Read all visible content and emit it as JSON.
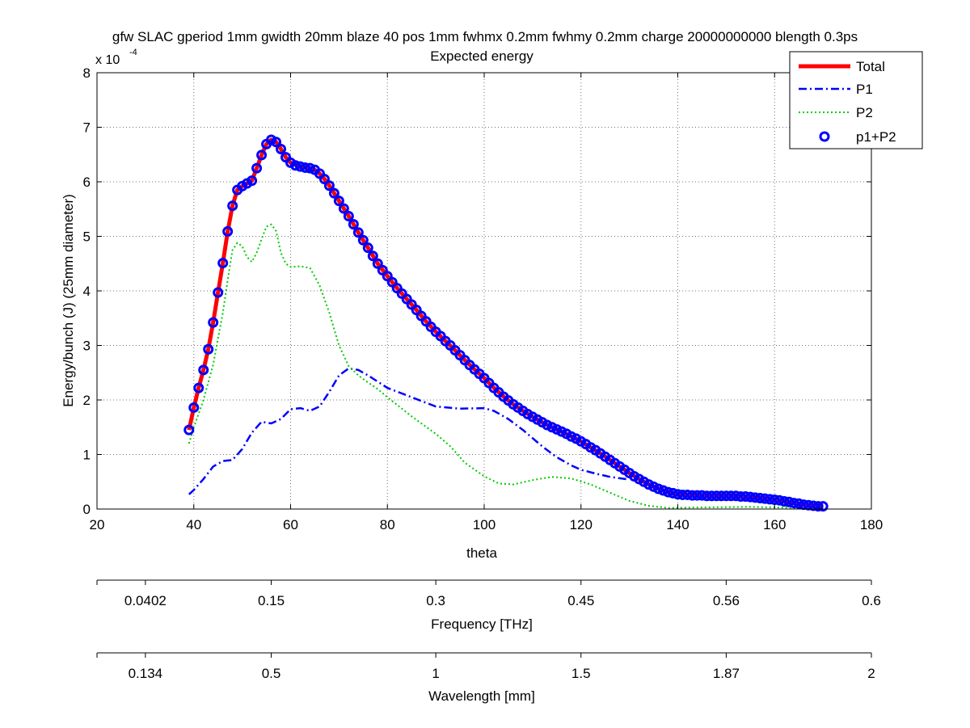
{
  "chart_data": {
    "type": "line",
    "title": "gfw SLAC gperiod 1mm gwidth 20mm blaze 40 pos 1mm fwhmx 0.2mm fwhmy 0.2mm charge 20000000000 blength 0.3ps",
    "subtitle": "Expected energy",
    "xlabel": "theta",
    "ylabel": "Energy/bunch (J) (25mm diameter)",
    "y_exponent_label": "x 10",
    "y_exponent": "-4",
    "xlim": [
      20,
      180
    ],
    "ylim": [
      0,
      8
    ],
    "y_multiplier": 0.0001,
    "grid": true,
    "legend_position": "top-right",
    "x_ticks": [
      "20",
      "40",
      "60",
      "80",
      "100",
      "120",
      "140",
      "160",
      "180"
    ],
    "y_ticks": [
      "0",
      "1",
      "2",
      "3",
      "4",
      "5",
      "6",
      "7",
      "8"
    ],
    "secondary_axes": [
      {
        "label": "Frequency [THz]",
        "ticks": [
          {
            "theta": 20,
            "label": ""
          },
          {
            "theta": 30,
            "label": "0.0402"
          },
          {
            "theta": 56,
            "label": "0.15"
          },
          {
            "theta": 90,
            "label": "0.3"
          },
          {
            "theta": 120,
            "label": "0.45"
          },
          {
            "theta": 150,
            "label": "0.56"
          },
          {
            "theta": 180,
            "label": "0.6"
          }
        ]
      },
      {
        "label": "Wavelength [mm]",
        "ticks": [
          {
            "theta": 20,
            "label": ""
          },
          {
            "theta": 30,
            "label": "0.134"
          },
          {
            "theta": 56,
            "label": "0.5"
          },
          {
            "theta": 90,
            "label": "1"
          },
          {
            "theta": 120,
            "label": "1.5"
          },
          {
            "theta": 150,
            "label": "1.87"
          },
          {
            "theta": 180,
            "label": "2"
          }
        ]
      }
    ],
    "series": [
      {
        "name": "Total",
        "style": "solid",
        "color": "#ff0000",
        "width": 5,
        "points": [
          [
            39,
            1.45
          ],
          [
            40,
            1.86
          ],
          [
            41,
            2.22
          ],
          [
            42,
            2.55
          ],
          [
            43,
            2.93
          ],
          [
            44,
            3.42
          ],
          [
            45,
            3.97
          ],
          [
            46,
            4.51
          ],
          [
            47,
            5.09
          ],
          [
            48,
            5.56
          ],
          [
            49,
            5.85
          ],
          [
            50,
            5.92
          ],
          [
            51,
            5.97
          ],
          [
            52,
            6.02
          ],
          [
            53,
            6.25
          ],
          [
            54,
            6.49
          ],
          [
            55,
            6.69
          ],
          [
            56,
            6.77
          ],
          [
            57,
            6.73
          ],
          [
            58,
            6.6
          ],
          [
            59,
            6.45
          ],
          [
            60,
            6.35
          ],
          [
            62,
            6.28
          ],
          [
            64,
            6.25
          ],
          [
            65,
            6.22
          ],
          [
            66,
            6.15
          ],
          [
            67,
            6.05
          ],
          [
            68,
            5.93
          ],
          [
            70,
            5.65
          ],
          [
            72,
            5.37
          ],
          [
            74,
            5.07
          ],
          [
            76,
            4.79
          ],
          [
            78,
            4.5
          ],
          [
            80,
            4.27
          ],
          [
            82,
            4.05
          ],
          [
            84,
            3.85
          ],
          [
            86,
            3.65
          ],
          [
            88,
            3.44
          ],
          [
            90,
            3.25
          ],
          [
            92,
            3.08
          ],
          [
            94,
            2.91
          ],
          [
            96,
            2.73
          ],
          [
            98,
            2.56
          ],
          [
            100,
            2.4
          ],
          [
            102,
            2.22
          ],
          [
            104,
            2.06
          ],
          [
            106,
            1.92
          ],
          [
            108,
            1.8
          ],
          [
            110,
            1.69
          ],
          [
            112,
            1.59
          ],
          [
            114,
            1.5
          ],
          [
            116,
            1.42
          ],
          [
            118,
            1.33
          ],
          [
            120,
            1.24
          ],
          [
            122,
            1.13
          ],
          [
            124,
            1.02
          ],
          [
            126,
            0.9
          ],
          [
            128,
            0.78
          ],
          [
            130,
            0.66
          ],
          [
            132,
            0.55
          ],
          [
            134,
            0.45
          ],
          [
            136,
            0.37
          ],
          [
            138,
            0.31
          ],
          [
            140,
            0.27
          ],
          [
            142,
            0.26
          ],
          [
            144,
            0.25
          ],
          [
            146,
            0.24
          ],
          [
            148,
            0.24
          ],
          [
            150,
            0.24
          ],
          [
            152,
            0.24
          ],
          [
            154,
            0.23
          ],
          [
            156,
            0.21
          ],
          [
            158,
            0.19
          ],
          [
            160,
            0.17
          ],
          [
            162,
            0.14
          ],
          [
            164,
            0.11
          ],
          [
            166,
            0.08
          ],
          [
            168,
            0.06
          ],
          [
            170,
            0.05
          ]
        ]
      },
      {
        "name": "P1",
        "style": "dashdot",
        "color": "#0000ff",
        "width": 2.5,
        "points": [
          [
            39,
            0.27
          ],
          [
            40,
            0.35
          ],
          [
            42,
            0.55
          ],
          [
            44,
            0.78
          ],
          [
            46,
            0.88
          ],
          [
            48,
            0.9
          ],
          [
            50,
            1.1
          ],
          [
            52,
            1.4
          ],
          [
            54,
            1.6
          ],
          [
            56,
            1.57
          ],
          [
            58,
            1.65
          ],
          [
            60,
            1.83
          ],
          [
            62,
            1.85
          ],
          [
            64,
            1.8
          ],
          [
            66,
            1.88
          ],
          [
            68,
            2.15
          ],
          [
            70,
            2.45
          ],
          [
            72,
            2.58
          ],
          [
            74,
            2.55
          ],
          [
            76,
            2.45
          ],
          [
            80,
            2.22
          ],
          [
            85,
            2.05
          ],
          [
            90,
            1.88
          ],
          [
            95,
            1.84
          ],
          [
            100,
            1.85
          ],
          [
            102,
            1.8
          ],
          [
            105,
            1.65
          ],
          [
            108,
            1.45
          ],
          [
            110,
            1.3
          ],
          [
            112,
            1.15
          ],
          [
            115,
            0.95
          ],
          [
            118,
            0.8
          ],
          [
            120,
            0.72
          ],
          [
            123,
            0.65
          ],
          [
            126,
            0.59
          ],
          [
            130,
            0.54
          ]
        ]
      },
      {
        "name": "P2",
        "style": "dotted",
        "color": "#00cc00",
        "width": 2,
        "points": [
          [
            39,
            1.2
          ],
          [
            40,
            1.5
          ],
          [
            42,
            2.0
          ],
          [
            44,
            2.65
          ],
          [
            46,
            3.6
          ],
          [
            47,
            4.2
          ],
          [
            48,
            4.75
          ],
          [
            49,
            4.88
          ],
          [
            50,
            4.82
          ],
          [
            51,
            4.62
          ],
          [
            52,
            4.53
          ],
          [
            53,
            4.7
          ],
          [
            54,
            4.95
          ],
          [
            55,
            5.18
          ],
          [
            56,
            5.22
          ],
          [
            57,
            5.1
          ],
          [
            58,
            4.7
          ],
          [
            59,
            4.5
          ],
          [
            60,
            4.44
          ],
          [
            62,
            4.45
          ],
          [
            64,
            4.42
          ],
          [
            66,
            4.1
          ],
          [
            68,
            3.6
          ],
          [
            70,
            3.0
          ],
          [
            72,
            2.62
          ],
          [
            74,
            2.45
          ],
          [
            76,
            2.32
          ],
          [
            78,
            2.2
          ],
          [
            80,
            2.05
          ],
          [
            85,
            1.7
          ],
          [
            90,
            1.38
          ],
          [
            93,
            1.15
          ],
          [
            96,
            0.85
          ],
          [
            100,
            0.6
          ],
          [
            103,
            0.47
          ],
          [
            106,
            0.45
          ],
          [
            110,
            0.53
          ],
          [
            114,
            0.59
          ],
          [
            118,
            0.56
          ],
          [
            122,
            0.45
          ],
          [
            126,
            0.3
          ],
          [
            130,
            0.15
          ],
          [
            134,
            0.06
          ],
          [
            138,
            0.02
          ],
          [
            145,
            0.03
          ],
          [
            155,
            0.04
          ],
          [
            165,
            0.02
          ],
          [
            170,
            0.01
          ]
        ]
      },
      {
        "name": "p1+P2",
        "style": "markers",
        "color": "#0000ff",
        "width": 3,
        "points": [
          [
            39,
            1.45
          ],
          [
            40,
            1.86
          ],
          [
            41,
            2.22
          ],
          [
            42,
            2.55
          ],
          [
            43,
            2.93
          ],
          [
            44,
            3.42
          ],
          [
            45,
            3.97
          ],
          [
            46,
            4.51
          ],
          [
            47,
            5.09
          ],
          [
            48,
            5.56
          ],
          [
            49,
            5.85
          ],
          [
            50,
            5.92
          ],
          [
            51,
            5.97
          ],
          [
            52,
            6.02
          ],
          [
            53,
            6.25
          ],
          [
            54,
            6.49
          ],
          [
            55,
            6.69
          ],
          [
            56,
            6.77
          ],
          [
            57,
            6.73
          ],
          [
            58,
            6.6
          ],
          [
            59,
            6.45
          ],
          [
            60,
            6.35
          ],
          [
            61,
            6.3
          ],
          [
            62,
            6.28
          ],
          [
            63,
            6.26
          ],
          [
            64,
            6.25
          ],
          [
            65,
            6.22
          ],
          [
            66,
            6.15
          ],
          [
            67,
            6.05
          ],
          [
            68,
            5.93
          ],
          [
            69,
            5.79
          ],
          [
            70,
            5.65
          ],
          [
            71,
            5.51
          ],
          [
            72,
            5.37
          ],
          [
            73,
            5.22
          ],
          [
            74,
            5.07
          ],
          [
            75,
            4.93
          ],
          [
            76,
            4.79
          ],
          [
            77,
            4.64
          ],
          [
            78,
            4.5
          ],
          [
            79,
            4.38
          ],
          [
            80,
            4.27
          ],
          [
            81,
            4.16
          ],
          [
            82,
            4.05
          ],
          [
            83,
            3.95
          ],
          [
            84,
            3.85
          ],
          [
            85,
            3.75
          ],
          [
            86,
            3.65
          ],
          [
            87,
            3.54
          ],
          [
            88,
            3.44
          ],
          [
            89,
            3.34
          ],
          [
            90,
            3.25
          ],
          [
            91,
            3.17
          ],
          [
            92,
            3.08
          ],
          [
            93,
            3.0
          ],
          [
            94,
            2.91
          ],
          [
            95,
            2.82
          ],
          [
            96,
            2.73
          ],
          [
            97,
            2.64
          ],
          [
            98,
            2.56
          ],
          [
            99,
            2.48
          ],
          [
            100,
            2.4
          ],
          [
            101,
            2.31
          ],
          [
            102,
            2.22
          ],
          [
            103,
            2.14
          ],
          [
            104,
            2.06
          ],
          [
            105,
            1.99
          ],
          [
            106,
            1.92
          ],
          [
            107,
            1.86
          ],
          [
            108,
            1.8
          ],
          [
            109,
            1.74
          ],
          [
            110,
            1.69
          ],
          [
            111,
            1.64
          ],
          [
            112,
            1.59
          ],
          [
            113,
            1.54
          ],
          [
            114,
            1.5
          ],
          [
            115,
            1.46
          ],
          [
            116,
            1.42
          ],
          [
            117,
            1.38
          ],
          [
            118,
            1.33
          ],
          [
            119,
            1.29
          ],
          [
            120,
            1.24
          ],
          [
            121,
            1.19
          ],
          [
            122,
            1.13
          ],
          [
            123,
            1.08
          ],
          [
            124,
            1.02
          ],
          [
            125,
            0.96
          ],
          [
            126,
            0.9
          ],
          [
            127,
            0.84
          ],
          [
            128,
            0.78
          ],
          [
            129,
            0.72
          ],
          [
            130,
            0.66
          ],
          [
            131,
            0.6
          ],
          [
            132,
            0.55
          ],
          [
            133,
            0.5
          ],
          [
            134,
            0.45
          ],
          [
            135,
            0.41
          ],
          [
            136,
            0.37
          ],
          [
            137,
            0.34
          ],
          [
            138,
            0.31
          ],
          [
            139,
            0.29
          ],
          [
            140,
            0.27
          ],
          [
            141,
            0.26
          ],
          [
            142,
            0.26
          ],
          [
            143,
            0.25
          ],
          [
            144,
            0.25
          ],
          [
            145,
            0.25
          ],
          [
            146,
            0.24
          ],
          [
            147,
            0.24
          ],
          [
            148,
            0.24
          ],
          [
            149,
            0.24
          ],
          [
            150,
            0.24
          ],
          [
            151,
            0.24
          ],
          [
            152,
            0.24
          ],
          [
            153,
            0.23
          ],
          [
            154,
            0.23
          ],
          [
            155,
            0.22
          ],
          [
            156,
            0.21
          ],
          [
            157,
            0.2
          ],
          [
            158,
            0.19
          ],
          [
            159,
            0.18
          ],
          [
            160,
            0.17
          ],
          [
            161,
            0.16
          ],
          [
            162,
            0.14
          ],
          [
            163,
            0.13
          ],
          [
            164,
            0.11
          ],
          [
            165,
            0.1
          ],
          [
            166,
            0.08
          ],
          [
            167,
            0.07
          ],
          [
            168,
            0.06
          ],
          [
            169,
            0.05
          ],
          [
            170,
            0.05
          ]
        ]
      }
    ]
  }
}
